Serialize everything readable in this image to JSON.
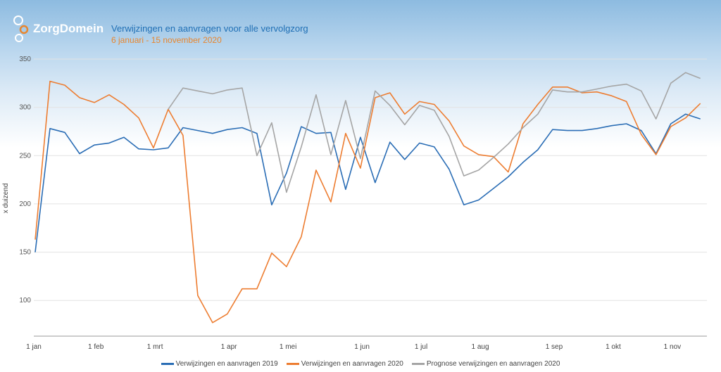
{
  "header": {
    "logo_text": "ZorgDomein",
    "title": "Verwijzingen en aanvragen voor alle vervolgzorg",
    "subtitle": "6 januari - 15 november 2020"
  },
  "colors": {
    "series_2019": "#2a6db5",
    "series_2020": "#ed7d31",
    "prognose": "#a5a5a5",
    "title": "#1f6fb5",
    "subtitle": "#e8862e"
  },
  "chart_data": {
    "type": "line",
    "title": "Verwijzingen en aanvragen voor alle vervolgzorg",
    "ylabel": "x duizend",
    "xlabel": "",
    "ylim": [
      63,
      350
    ],
    "yticks": [
      100,
      150,
      200,
      250,
      300,
      350
    ],
    "x_unit": "week index (weekly points from 1 jan)",
    "xlim": [
      0,
      45.3
    ],
    "xticks": [
      {
        "label": "1 jan",
        "x": 0
      },
      {
        "label": "1 feb",
        "x": 4.2
      },
      {
        "label": "1 mrt",
        "x": 8.2
      },
      {
        "label": "1 apr",
        "x": 13.2
      },
      {
        "label": "1 mei",
        "x": 17.2
      },
      {
        "label": "1 jun",
        "x": 22.2
      },
      {
        "label": "1 jul",
        "x": 26.2
      },
      {
        "label": "1 aug",
        "x": 30.2
      },
      {
        "label": "1 sep",
        "x": 35.2
      },
      {
        "label": "1 okt",
        "x": 39.2
      },
      {
        "label": "1 nov",
        "x": 43.2
      }
    ],
    "grid": true,
    "legend_position": "bottom",
    "series": [
      {
        "name": "Verwijzingen en aanvragen 2019",
        "color": "#2a6db5",
        "start": 0,
        "values": [
          150,
          278,
          274,
          252,
          261,
          263,
          269,
          257,
          256,
          258,
          279,
          276,
          273,
          277,
          279,
          273,
          199,
          232,
          280,
          273,
          274,
          215,
          269,
          222,
          264,
          246,
          263,
          259,
          236,
          199,
          204,
          216,
          228,
          243,
          256,
          277,
          276,
          276,
          278,
          281,
          283,
          276,
          252,
          283,
          293,
          288
        ]
      },
      {
        "name": "Verwijzingen en aanvragen 2020",
        "color": "#ed7d31",
        "start": 0,
        "values": [
          163,
          327,
          323,
          310,
          305,
          313,
          303,
          289,
          258,
          298,
          271,
          105,
          77,
          86,
          112,
          112,
          149,
          135,
          166,
          235,
          202,
          273,
          237,
          310,
          315,
          293,
          306,
          303,
          286,
          260,
          251,
          249,
          233,
          283,
          303,
          321,
          321,
          315,
          316,
          312,
          306,
          272,
          251,
          280,
          289,
          304
        ]
      },
      {
        "name": "Prognose verwijzingen en aanvragen 2020",
        "color": "#a5a5a5",
        "start": 9,
        "values": [
          298,
          320,
          317,
          314,
          318,
          320,
          250,
          284,
          212,
          259,
          313,
          251,
          307,
          247,
          317,
          302,
          282,
          302,
          297,
          270,
          229,
          235,
          248,
          262,
          279,
          293,
          318,
          316,
          316,
          319,
          322,
          324,
          317,
          288,
          325,
          336,
          330
        ]
      }
    ]
  }
}
